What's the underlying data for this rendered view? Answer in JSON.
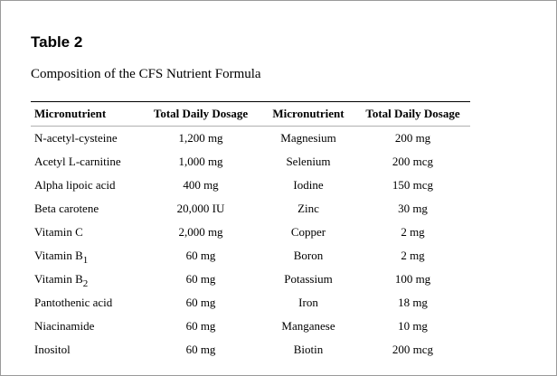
{
  "title": "Table 2",
  "caption": "Composition of the CFS Nutrient Formula",
  "headers": [
    "Micronutrient",
    "Total Daily Dosage",
    "Micronutrient",
    "Total Daily Dosage"
  ],
  "rows": [
    {
      "name1": "N-acetyl-cysteine",
      "dose1": "1,200 mg",
      "name2": "Magnesium",
      "dose2": "200 mg"
    },
    {
      "name1": "Acetyl L-carnitine",
      "dose1": "1,000 mg",
      "name2": "Selenium",
      "dose2": "200 mcg"
    },
    {
      "name1": "Alpha lipoic acid",
      "dose1": "400 mg",
      "name2": "Iodine",
      "dose2": "150 mcg"
    },
    {
      "name1": "Beta carotene",
      "dose1": "20,000 IU",
      "name2": "Zinc",
      "dose2": "30 mg"
    },
    {
      "name1": "Vitamin C",
      "dose1": "2,000 mg",
      "name2": "Copper",
      "dose2": "2 mg"
    },
    {
      "name1": "Vitamin B",
      "sub1": "1",
      "dose1": "60 mg",
      "name2": "Boron",
      "dose2": "2 mg"
    },
    {
      "name1": "Vitamin B",
      "sub1": "2",
      "dose1": "60 mg",
      "name2": "Potassium",
      "dose2": "100 mg"
    },
    {
      "name1": "Pantothenic acid",
      "dose1": "60 mg",
      "name2": "Iron",
      "dose2": "18 mg"
    },
    {
      "name1": "Niacinamide",
      "dose1": "60 mg",
      "name2": "Manganese",
      "dose2": "10 mg"
    },
    {
      "name1": "Inositol",
      "dose1": "60 mg",
      "name2": "Biotin",
      "dose2": "200 mcg"
    }
  ]
}
